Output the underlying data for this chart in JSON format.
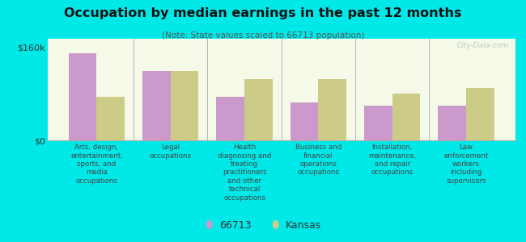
{
  "title": "Occupation by median earnings in the past 12 months",
  "subtitle": "(Note: State values scaled to 66713 population)",
  "background_color": "#00e8e8",
  "plot_bg_start": "#f5fae8",
  "plot_bg_end": "#e8f5e8",
  "bar_color_66713": "#cc99cc",
  "bar_color_kansas": "#cccc88",
  "categories": [
    "Arts, design,\nentertainment,\nsports, and\nmedia\noccupations",
    "Legal\noccupations",
    "Health\ndiagnosing and\ntreating\npractitioners\nand other\ntechnical\noccupations",
    "Business and\nfinancial\noperations\noccupations",
    "Installation,\nmaintenance,\nand repair\noccupations",
    "Law\nenforcement\nworkers\nincluding\nsupervisors"
  ],
  "values_66713": [
    150000,
    120000,
    75000,
    65000,
    60000,
    60000
  ],
  "values_kansas": [
    75000,
    120000,
    105000,
    105000,
    80000,
    90000
  ],
  "ylim": [
    0,
    175000
  ],
  "yticks": [
    0,
    160000
  ],
  "ytick_labels": [
    "$0",
    "$160k"
  ],
  "legend_labels": [
    "66713",
    "Kansas"
  ],
  "watermark": "City-Data.com"
}
